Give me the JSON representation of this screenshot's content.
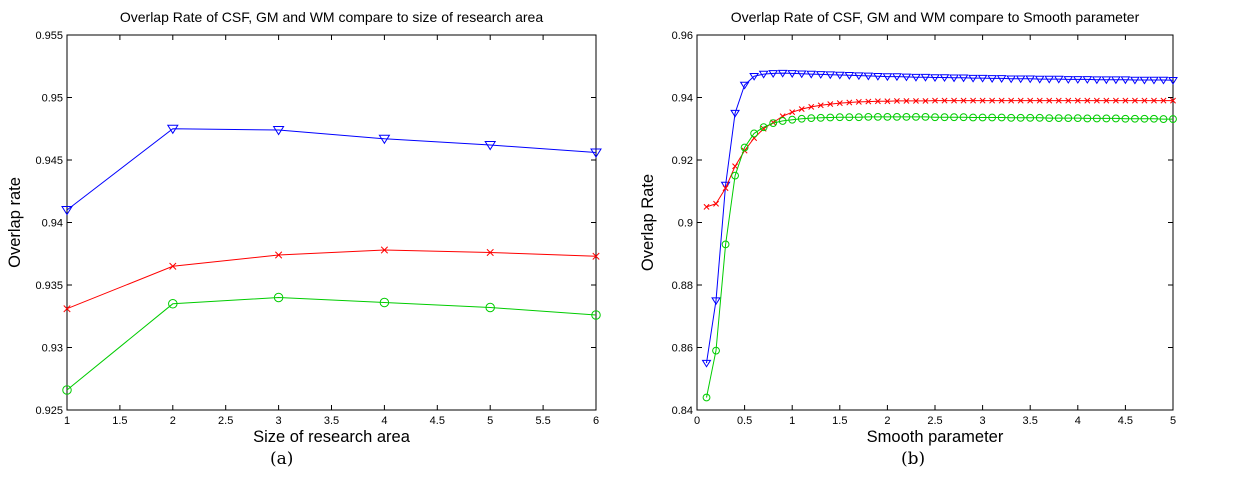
{
  "chart_data": [
    {
      "type": "line",
      "title": "Overlap Rate of CSF, GM and WM compare to size of research area",
      "xlabel": "Size of research area",
      "ylabel": "Overlap rate",
      "xlim": [
        1,
        6
      ],
      "ylim": [
        0.925,
        0.955
      ],
      "xticks": [
        "1",
        "1.5",
        "2",
        "2.5",
        "3",
        "3.5",
        "4",
        "4.5",
        "5",
        "5.5",
        "6"
      ],
      "yticks": [
        "0.925",
        "0.93",
        "0.935",
        "0.94",
        "0.945",
        "0.95",
        "0.955"
      ],
      "grid": false,
      "caption": "(a)",
      "x": [
        1,
        2,
        3,
        4,
        5,
        6
      ],
      "series": [
        {
          "color": "#0000ff",
          "marker": "triangle-down",
          "values": [
            0.941,
            0.9475,
            0.9474,
            0.9467,
            0.9462,
            0.9456
          ]
        },
        {
          "color": "#ff0000",
          "marker": "x",
          "values": [
            0.9331,
            0.9365,
            0.9374,
            0.9378,
            0.9376,
            0.9373
          ]
        },
        {
          "color": "#00cc00",
          "marker": "circle",
          "values": [
            0.9266,
            0.9335,
            0.934,
            0.9336,
            0.9332,
            0.9326
          ]
        }
      ]
    },
    {
      "type": "line",
      "title": "Overlap Rate of CSF, GM and WM compare to Smooth parameter",
      "xlabel": "Smooth parameter",
      "ylabel": "Overlap Rate",
      "xlim": [
        0,
        5
      ],
      "ylim": [
        0.84,
        0.96
      ],
      "xticks": [
        "0",
        "0.5",
        "1",
        "1.5",
        "2",
        "2.5",
        "3",
        "3.5",
        "4",
        "4.5",
        "5"
      ],
      "yticks": [
        "0.84",
        "0.86",
        "0.88",
        "0.9",
        "0.92",
        "0.94",
        "0.96"
      ],
      "grid": false,
      "caption": "(b)",
      "x": [
        0.1,
        0.2,
        0.3,
        0.4,
        0.5,
        0.6,
        0.7,
        0.8,
        0.9,
        1.0,
        1.1,
        1.2,
        1.3,
        1.4,
        1.5,
        1.6,
        1.7,
        1.8,
        1.9,
        2.0,
        2.1,
        2.2,
        2.3,
        2.4,
        2.5,
        2.6,
        2.7,
        2.8,
        2.9,
        3.0,
        3.1,
        3.2,
        3.3,
        3.4,
        3.5,
        3.6,
        3.7,
        3.8,
        3.9,
        4.0,
        4.1,
        4.2,
        4.3,
        4.4,
        4.5,
        4.6,
        4.7,
        4.8,
        4.9,
        5.0
      ],
      "series": [
        {
          "color": "#0000ff",
          "marker": "triangle-down",
          "values": [
            0.855,
            0.875,
            0.912,
            0.935,
            0.944,
            0.9468,
            0.9475,
            0.9477,
            0.9478,
            0.9477,
            0.9476,
            0.9475,
            0.9474,
            0.9473,
            0.9472,
            0.9471,
            0.947,
            0.9469,
            0.9468,
            0.9467,
            0.9467,
            0.9466,
            0.9465,
            0.9465,
            0.9464,
            0.9464,
            0.9463,
            0.9463,
            0.9462,
            0.9462,
            0.9461,
            0.9461,
            0.946,
            0.946,
            0.946,
            0.9459,
            0.9459,
            0.9459,
            0.9458,
            0.9458,
            0.9458,
            0.9457,
            0.9457,
            0.9457,
            0.9457,
            0.9456,
            0.9456,
            0.9456,
            0.9456,
            0.9455
          ]
        },
        {
          "color": "#ff0000",
          "marker": "x",
          "values": [
            0.905,
            0.906,
            0.911,
            0.918,
            0.923,
            0.927,
            0.93,
            0.932,
            0.934,
            0.9353,
            0.9363,
            0.937,
            0.9375,
            0.9379,
            0.9382,
            0.9384,
            0.9386,
            0.9387,
            0.9388,
            0.9388,
            0.9389,
            0.9389,
            0.9389,
            0.9389,
            0.939,
            0.939,
            0.939,
            0.939,
            0.939,
            0.939,
            0.939,
            0.939,
            0.939,
            0.939,
            0.939,
            0.939,
            0.939,
            0.939,
            0.939,
            0.939,
            0.939,
            0.939,
            0.939,
            0.939,
            0.939,
            0.939,
            0.939,
            0.939,
            0.939,
            0.939
          ]
        },
        {
          "color": "#00cc00",
          "marker": "circle",
          "values": [
            0.844,
            0.859,
            0.893,
            0.915,
            0.924,
            0.9285,
            0.9305,
            0.9318,
            0.9325,
            0.9329,
            0.9332,
            0.9334,
            0.9335,
            0.9336,
            0.9337,
            0.9337,
            0.9337,
            0.9338,
            0.9338,
            0.9338,
            0.9338,
            0.9338,
            0.9338,
            0.9338,
            0.9337,
            0.9337,
            0.9337,
            0.9337,
            0.9336,
            0.9336,
            0.9336,
            0.9336,
            0.9335,
            0.9335,
            0.9335,
            0.9335,
            0.9334,
            0.9334,
            0.9334,
            0.9334,
            0.9333,
            0.9333,
            0.9333,
            0.9333,
            0.9332,
            0.9332,
            0.9332,
            0.9332,
            0.9331,
            0.9331
          ]
        }
      ]
    }
  ]
}
